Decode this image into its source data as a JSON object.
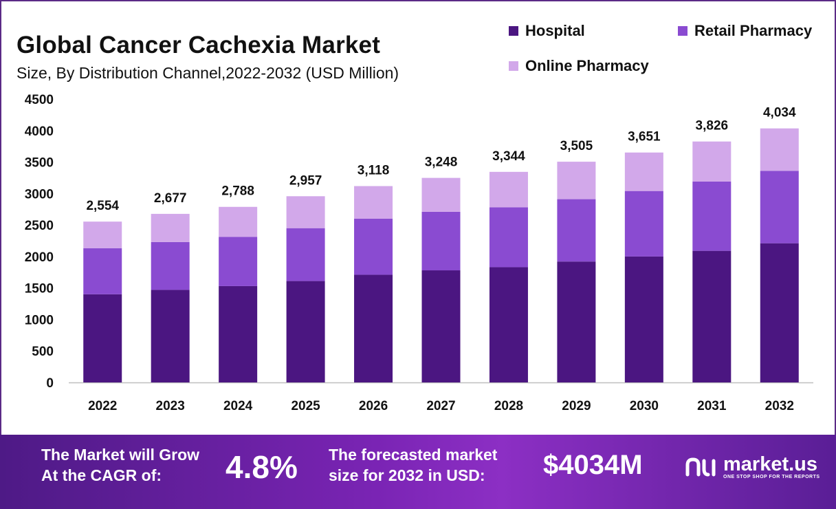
{
  "header": {
    "title": "Global Cancer Cachexia Market",
    "subtitle": "Size, By Distribution Channel,2022-2032 (USD Million)"
  },
  "legend": [
    {
      "label": "Hospital",
      "color": "#4b1681"
    },
    {
      "label": "Retail Pharmacy",
      "color": "#8a4bd1"
    },
    {
      "label": "Online Pharmacy",
      "color": "#d2a8ea"
    }
  ],
  "chart_data": {
    "type": "bar",
    "stacked": true,
    "categories": [
      "2022",
      "2023",
      "2024",
      "2025",
      "2026",
      "2027",
      "2028",
      "2029",
      "2030",
      "2031",
      "2032"
    ],
    "series": [
      {
        "name": "Hospital",
        "color": "#4b1681",
        "values": [
          1400,
          1470,
          1530,
          1610,
          1710,
          1780,
          1830,
          1920,
          2000,
          2090,
          2210
        ]
      },
      {
        "name": "Retail Pharmacy",
        "color": "#8a4bd1",
        "values": [
          730,
          760,
          780,
          840,
          890,
          930,
          950,
          990,
          1040,
          1100,
          1150
        ]
      },
      {
        "name": "Online Pharmacy",
        "color": "#d2a8ea",
        "values": [
          424,
          447,
          478,
          507,
          518,
          538,
          564,
          595,
          611,
          636,
          674
        ]
      }
    ],
    "totals_labels": [
      "2,554",
      "2,677",
      "2,788",
      "2,957",
      "3,118",
      "3,248",
      "3,344",
      "3,505",
      "3,651",
      "3,826",
      "4,034"
    ],
    "y_ticks": [
      "0",
      "500",
      "1000",
      "1500",
      "2000",
      "2500",
      "3000",
      "3500",
      "4000",
      "4500"
    ],
    "ylim": [
      0,
      4500
    ],
    "grid": false
  },
  "footer": {
    "cagr_text_1": "The Market will Grow",
    "cagr_text_2": "At the CAGR of:",
    "cagr_value": "4.8%",
    "forecast_text_1": "The forecasted market",
    "forecast_text_2": "size for 2032 in USD:",
    "forecast_value": "$4034M",
    "brand_name": "market.us",
    "brand_tagline": "ONE STOP SHOP FOR THE REPORTS"
  }
}
